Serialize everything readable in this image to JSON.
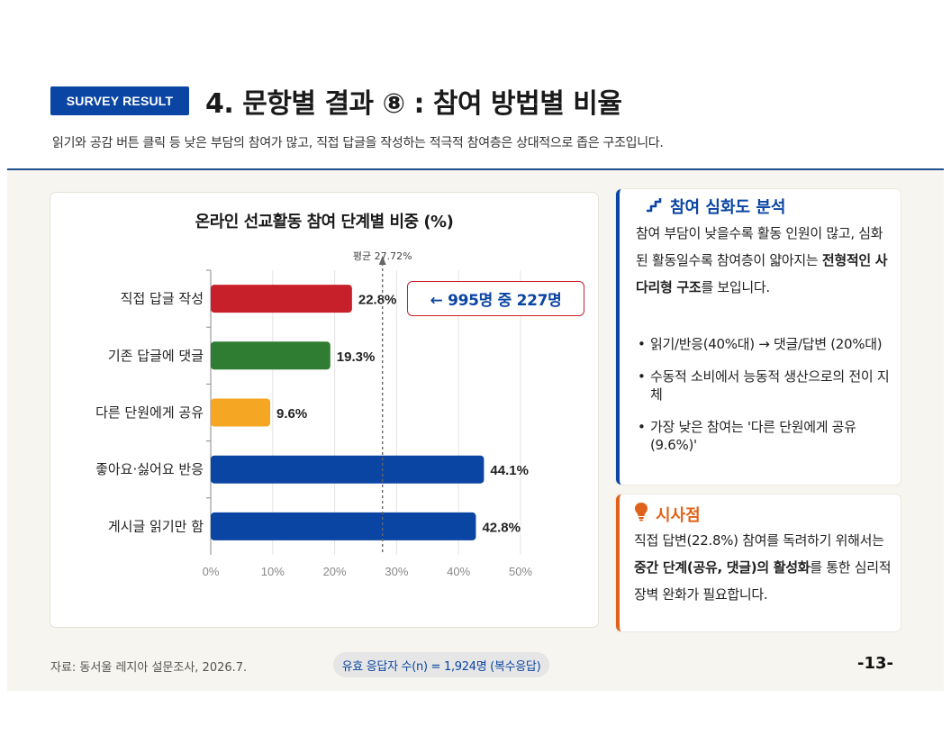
{
  "header": {
    "badge": "SURVEY RESULT",
    "title": "4. 문항별 결과 ⑧ : 참여 방법별  비율",
    "subtitle": "읽기와 공감 버튼 클릭 등 낮은 부담의 참여가 많고, 직접 답글을 작성하는 적극적 참여층은 상대적으로 좁은 구조입니다."
  },
  "chart_data": {
    "type": "bar",
    "orientation": "horizontal",
    "title": "온라인 선교활동 참여 단계별 비중 (%)",
    "categories": [
      "직접 답글 작성",
      "기존 답글에 댓글",
      "다른 단원에게 공유",
      "좋아요·싫어요 반응",
      "게시글 읽기만 함"
    ],
    "values": [
      22.8,
      19.3,
      9.6,
      44.1,
      42.8
    ],
    "value_labels": [
      "22.8%",
      "19.3%",
      "9.6%",
      "44.1%",
      "42.8%"
    ],
    "colors": [
      "#c8202a",
      "#2e7d32",
      "#f5a623",
      "#0b45a3",
      "#0b45a3"
    ],
    "xlim": [
      0,
      50
    ],
    "xticks": [
      "0%",
      "10%",
      "20%",
      "30%",
      "40%",
      "50%"
    ],
    "reference_line": {
      "label": "평균 27.72%",
      "value": 27.72
    },
    "callout": "← 995명 중 227명",
    "grid": true
  },
  "analysis": {
    "heading": "참여 심화도 분석",
    "icon": "stairs-icon",
    "text_1": "참여 부담이 낮을수록 활동 인원이 많고, 심화된 활동일수록 참여층이 얇아지는 ",
    "text_bold": "전형적인 사다리형 구조",
    "text_2": "를 보입니다.",
    "bullets": [
      "읽기/반응(40%대) → 댓글/답변 (20%대)",
      "수동적 소비에서 능동적 생산으로의 전이 지체",
      "가장 낮은 참여는 '다른 단원에게 공유 (9.6%)'"
    ]
  },
  "implication": {
    "heading": "시사점",
    "icon": "lightbulb-icon",
    "text_1": "직접 답변(22.8%) 참여를 독려하기 위해서는 ",
    "text_bold": "중간 단계(공유, 댓글)의 활성화",
    "text_2": "를 통한 심리적 장벽 완화가 필요합니다."
  },
  "footer": {
    "source": "자료: 동서울 레지아 설문조사, 2026.7.",
    "sample": "유효 응답자 수(n) = 1,924명 (복수응답)",
    "page": "-13-"
  }
}
